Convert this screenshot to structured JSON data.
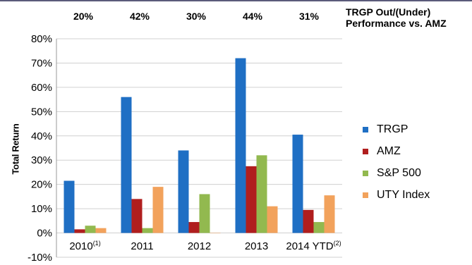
{
  "chart_data": {
    "type": "bar",
    "categories": [
      "2010",
      "2011",
      "2012",
      "2013",
      "2014 YTD"
    ],
    "category_footnotes": [
      "(1)",
      "",
      "",
      "",
      "(2)"
    ],
    "series": [
      {
        "name": "TRGP",
        "color": "#1f6fc4",
        "values": [
          21.5,
          56,
          34,
          72,
          40.5
        ]
      },
      {
        "name": "AMZ",
        "color": "#b01e1e",
        "values": [
          1.5,
          14,
          4.5,
          27.5,
          9.5
        ]
      },
      {
        "name": "S&P 500",
        "color": "#92b94f",
        "values": [
          3,
          2,
          16,
          32,
          4.5
        ]
      },
      {
        "name": "UTY Index",
        "color": "#f2a25c",
        "values": [
          2,
          19,
          0,
          11,
          15.5
        ]
      }
    ],
    "ylabel": "Total Return",
    "ylim": [
      -10,
      80
    ],
    "yticks": [
      "-10%",
      "0%",
      "10%",
      "20%",
      "30%",
      "40%",
      "50%",
      "60%",
      "70%",
      "80%"
    ],
    "ytick_values": [
      -10,
      0,
      10,
      20,
      30,
      40,
      50,
      60,
      70,
      80
    ],
    "grid": true,
    "legend_position": "right",
    "annotation_title": "TRGP Out/(Under) Performance vs. AMZ",
    "annotation_values": [
      "20%",
      "42%",
      "30%",
      "44%",
      "31%"
    ]
  }
}
